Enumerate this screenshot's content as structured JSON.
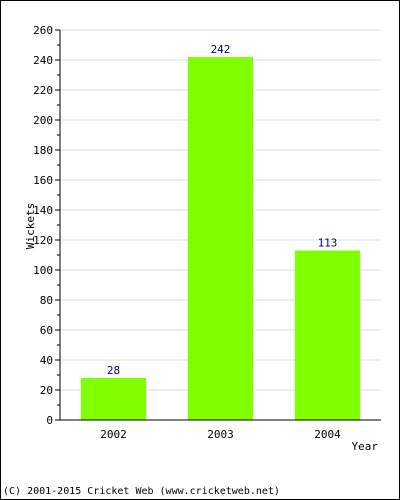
{
  "chart_data": {
    "type": "bar",
    "categories": [
      "2002",
      "2003",
      "2004"
    ],
    "values": [
      28,
      242,
      113
    ],
    "data_labels": [
      "28",
      "242",
      "113"
    ],
    "xlabel": "Year",
    "ylabel": "Wickets",
    "ylim": [
      0,
      260
    ],
    "yticks": [
      "0",
      "20",
      "40",
      "60",
      "80",
      "100",
      "120",
      "140",
      "160",
      "180",
      "200",
      "220",
      "240",
      "260"
    ],
    "grid": true,
    "bar_color": "#80ff00",
    "label_color": "#000080",
    "grid_color": "#dddddd"
  },
  "footer": {
    "credit": "(C) 2001-2015 Cricket Web (www.cricketweb.net)"
  }
}
